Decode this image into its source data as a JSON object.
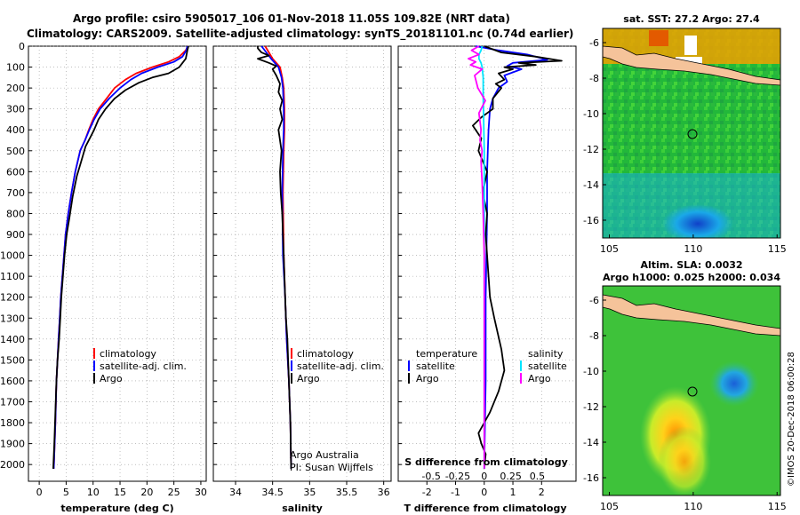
{
  "header": {
    "title_line1": "Argo profile: csiro 5905017_106 01-Nov-2018 11.05S 109.82E (NRT data)",
    "title_line2": "Climatology: CARS2009. Satellite-adjusted climatology: synTS_20181101.nc (0.74d earlier)"
  },
  "colors": {
    "climatology": "#ff0000",
    "satellite": "#0000ff",
    "argo": "#000000",
    "salinity_satellite": "#00e5ff",
    "salinity_argo": "#ff00ff",
    "land": "#f5c39a"
  },
  "chart_data": [
    {
      "type": "line",
      "name": "temperature",
      "xlabel": "temperature (deg C)",
      "ylabel": "",
      "xlim": [
        -2,
        31
      ],
      "ylim": [
        2080,
        0
      ],
      "xticks": [
        0,
        5,
        10,
        15,
        20,
        25,
        30
      ],
      "yticks": [
        0,
        100,
        200,
        300,
        400,
        500,
        600,
        700,
        800,
        900,
        1000,
        1100,
        1200,
        1300,
        1400,
        1500,
        1600,
        1700,
        1800,
        1900,
        2000
      ],
      "legend": [
        "climatology",
        "satellite-adj. clim.",
        "Argo"
      ],
      "series": [
        {
          "name": "climatology",
          "x": [
            27.6,
            27.2,
            26,
            24,
            21,
            18,
            16,
            14,
            12.5,
            11,
            10,
            9.2,
            8.5,
            7.6,
            6.7,
            6,
            5.4,
            4.9,
            4.6,
            4.3,
            4,
            3.8,
            3.6,
            3.4,
            3.2,
            3,
            2.7
          ],
          "y": [
            0,
            20,
            50,
            75,
            100,
            130,
            160,
            200,
            250,
            300,
            350,
            400,
            450,
            500,
            600,
            700,
            800,
            900,
            1000,
            1100,
            1200,
            1300,
            1400,
            1500,
            1600,
            1800,
            2020
          ]
        },
        {
          "name": "satellite-adj. clim.",
          "x": [
            27.5,
            27.3,
            26.6,
            25,
            22,
            19,
            17,
            15,
            13,
            11.3,
            10.2,
            9.3,
            8.5,
            7.6,
            6.7,
            6,
            5.4,
            4.9,
            4.6,
            4.3,
            4,
            3.8,
            3.6,
            3.4,
            3.2,
            3,
            2.7
          ],
          "y": [
            0,
            20,
            50,
            75,
            100,
            130,
            160,
            200,
            250,
            300,
            350,
            400,
            450,
            500,
            600,
            700,
            800,
            900,
            1000,
            1100,
            1200,
            1300,
            1400,
            1500,
            1600,
            1800,
            2020
          ]
        },
        {
          "name": "Argo",
          "x": [
            27.7,
            27.5,
            27.2,
            26,
            24,
            21,
            18.5,
            16,
            14,
            12.3,
            11,
            10.2,
            9.6,
            8.6,
            7.8,
            7,
            6.2,
            5.6,
            5.1,
            4.7,
            4.4,
            4.1,
            3.9,
            3.7,
            3.4,
            3.2,
            3,
            2.8,
            2.6
          ],
          "y": [
            0,
            20,
            60,
            100,
            130,
            150,
            175,
            210,
            250,
            300,
            350,
            400,
            430,
            480,
            550,
            620,
            720,
            820,
            900,
            1000,
            1100,
            1200,
            1300,
            1400,
            1500,
            1600,
            1750,
            1900,
            2020
          ]
        }
      ]
    },
    {
      "type": "line",
      "name": "salinity",
      "xlabel": "salinity",
      "ylabel": "",
      "xlim": [
        33.7,
        36.1
      ],
      "ylim": [
        2080,
        0
      ],
      "xticks": [
        34,
        34.5,
        35,
        35.5,
        36
      ],
      "legend": [
        "climatology",
        "satellite-adj. clim.",
        "Argo"
      ],
      "annotation": [
        "Argo Australia",
        "PI: Susan Wijffels"
      ],
      "series": [
        {
          "name": "climatology",
          "x": [
            34.4,
            34.5,
            34.6,
            34.63,
            34.65,
            34.66,
            34.66,
            34.65,
            34.64,
            34.65,
            34.67,
            34.69,
            34.72,
            34.74,
            34.75
          ],
          "y": [
            0,
            60,
            100,
            150,
            200,
            300,
            400,
            500,
            700,
            1000,
            1200,
            1400,
            1600,
            1800,
            2020
          ]
        },
        {
          "name": "satellite-adj. clim.",
          "x": [
            34.35,
            34.48,
            34.58,
            34.62,
            34.64,
            34.65,
            34.65,
            34.64,
            34.63,
            34.64,
            34.67,
            34.69,
            34.72,
            34.74,
            34.75
          ],
          "y": [
            0,
            60,
            100,
            150,
            200,
            300,
            400,
            500,
            700,
            1000,
            1200,
            1400,
            1600,
            1800,
            2020
          ]
        },
        {
          "name": "Argo",
          "x": [
            34.3,
            34.3,
            34.35,
            34.45,
            34.3,
            34.45,
            34.55,
            34.5,
            34.55,
            34.6,
            34.58,
            34.63,
            34.6,
            34.63,
            34.58,
            34.6,
            34.62,
            34.6,
            34.61,
            34.63,
            34.64,
            34.65,
            34.66,
            34.67,
            34.68,
            34.7,
            34.72,
            34.74,
            34.75
          ],
          "y": [
            0,
            10,
            30,
            45,
            60,
            80,
            95,
            110,
            140,
            180,
            220,
            260,
            300,
            350,
            400,
            450,
            500,
            600,
            700,
            800,
            900,
            1000,
            1100,
            1200,
            1300,
            1400,
            1600,
            1800,
            2020
          ]
        }
      ]
    },
    {
      "type": "line",
      "name": "differences",
      "xlabel": "T difference from climatology",
      "xlabel2": "S difference from climatology",
      "xlim": [
        -3,
        3.2
      ],
      "ylim": [
        2080,
        0
      ],
      "xticks": [
        -2,
        -1,
        0,
        1,
        2
      ],
      "xticks2": [
        -0.5,
        -0.25,
        0,
        0.25,
        0.5
      ],
      "xticks2_labels": [
        "-0.5",
        "-0.25",
        "0",
        "0.25",
        "0.5"
      ],
      "legend_temperature": {
        "title": "temperature",
        "items": [
          "satellite",
          "Argo"
        ]
      },
      "legend_salinity": {
        "title": "salinity",
        "items": [
          "satellite",
          "Argo"
        ]
      },
      "series": [
        {
          "name": "temperature satellite",
          "x": [
            -0.3,
            0.5,
            1.5,
            2.2,
            1.0,
            0.8,
            1.3,
            0.7,
            0.8,
            0.5,
            0.3,
            0.2,
            0.15,
            0.1,
            0.1,
            0.05,
            0.05,
            0
          ],
          "y": [
            0,
            20,
            40,
            65,
            80,
            95,
            110,
            140,
            170,
            200,
            250,
            300,
            400,
            600,
            800,
            1200,
            1600,
            2020
          ]
        },
        {
          "name": "temperature Argo",
          "x": [
            0,
            0.6,
            1.8,
            2.7,
            1.2,
            1.8,
            0.7,
            1.0,
            0.5,
            0.7,
            0.4,
            0.6,
            0.3,
            0.3,
            -0.1,
            -0.4,
            -0.1,
            -0.2,
            0.1,
            -0.05,
            0.1,
            0.05,
            0.1,
            0.15,
            0.2,
            0.35,
            0.6,
            0.7,
            0.5,
            0.2,
            0.0,
            -0.2,
            -0.1,
            0.05,
            0
          ],
          "y": [
            0,
            30,
            50,
            70,
            80,
            90,
            100,
            110,
            130,
            160,
            180,
            200,
            250,
            300,
            340,
            380,
            440,
            500,
            600,
            700,
            800,
            900,
            1000,
            1100,
            1200,
            1300,
            1450,
            1550,
            1650,
            1750,
            1800,
            1850,
            1900,
            1950,
            2020
          ]
        },
        {
          "name": "salinity satellite",
          "x": [
            -0.02,
            -0.03,
            -0.05,
            -0.05,
            -0.03,
            -0.02,
            -0.01,
            -0.01,
            0,
            0,
            0
          ],
          "y": [
            0,
            20,
            40,
            60,
            80,
            100,
            150,
            250,
            500,
            1000,
            2020
          ]
        },
        {
          "name": "salinity Argo",
          "x": [
            -0.05,
            -0.12,
            -0.05,
            -0.15,
            -0.08,
            -0.13,
            -0.02,
            -0.09,
            -0.06,
            0.01,
            -0.05,
            -0.03,
            -0.04,
            -0.02,
            -0.03,
            -0.02,
            -0.01,
            0,
            0,
            0
          ],
          "y": [
            0,
            20,
            40,
            60,
            75,
            90,
            110,
            140,
            200,
            260,
            320,
            400,
            450,
            500,
            550,
            650,
            800,
            1000,
            1500,
            2020
          ]
        }
      ]
    },
    {
      "type": "heatmap",
      "name": "sat_sst_map",
      "title": "sat. SST: 27.2 Argo: 27.4",
      "xticks": [
        105,
        110,
        115
      ],
      "yticks": [
        -6,
        -8,
        -10,
        -12,
        -14,
        -16
      ],
      "xlim": [
        104.6,
        115.2
      ],
      "ylim": [
        -17,
        -5.2
      ],
      "marker": {
        "lon": 109.82,
        "lat": -11.05
      }
    },
    {
      "type": "heatmap",
      "name": "altim_sla_map",
      "title_line1": "Altim. SLA: 0.0032",
      "title_line2": "Argo h1000: 0.025 h2000: 0.034",
      "xticks": [
        105,
        110,
        115
      ],
      "yticks": [
        -6,
        -8,
        -10,
        -12,
        -14,
        -16
      ],
      "xlim": [
        104.6,
        115.2
      ],
      "ylim": [
        -17,
        -5.2
      ],
      "marker": {
        "lon": 109.82,
        "lat": -11.05
      }
    }
  ],
  "footer": {
    "credit": "©IMOS 20-Dec-2018 06:00:28"
  }
}
